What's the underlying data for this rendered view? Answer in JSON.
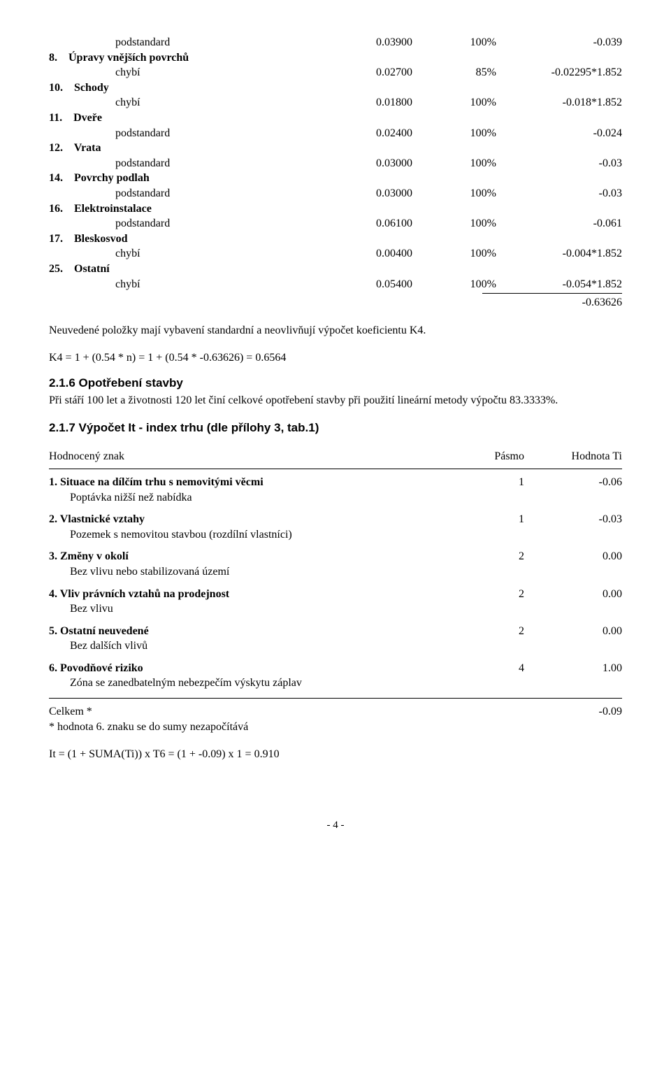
{
  "items": [
    {
      "num": "",
      "label": "podstandard",
      "v1": "0.03900",
      "v2": "100%",
      "v3": "-0.039",
      "bold": false,
      "indent": 2
    },
    {
      "num": "8.",
      "label": "Úpravy vnějších povrchů",
      "bold": true,
      "indent": 0
    },
    {
      "num": "",
      "label": "chybí",
      "v1": "0.02700",
      "v2": "85%",
      "v3": "-0.02295*1.852",
      "bold": false,
      "indent": 2
    },
    {
      "num": "10.",
      "label": "Schody",
      "bold": true,
      "indent": 0
    },
    {
      "num": "",
      "label": "chybí",
      "v1": "0.01800",
      "v2": "100%",
      "v3": "-0.018*1.852",
      "bold": false,
      "indent": 2
    },
    {
      "num": "11.",
      "label": "Dveře",
      "bold": true,
      "indent": 0
    },
    {
      "num": "",
      "label": "podstandard",
      "v1": "0.02400",
      "v2": "100%",
      "v3": "-0.024",
      "bold": false,
      "indent": 2
    },
    {
      "num": "12.",
      "label": "Vrata",
      "bold": true,
      "indent": 0
    },
    {
      "num": "",
      "label": "podstandard",
      "v1": "0.03000",
      "v2": "100%",
      "v3": "-0.03",
      "bold": false,
      "indent": 2
    },
    {
      "num": "14.",
      "label": "Povrchy podlah",
      "bold": true,
      "indent": 0
    },
    {
      "num": "",
      "label": "podstandard",
      "v1": "0.03000",
      "v2": "100%",
      "v3": "-0.03",
      "bold": false,
      "indent": 2
    },
    {
      "num": "16.",
      "label": "Elektroinstalace",
      "bold": true,
      "indent": 0
    },
    {
      "num": "",
      "label": "podstandard",
      "v1": "0.06100",
      "v2": "100%",
      "v3": "-0.061",
      "bold": false,
      "indent": 2
    },
    {
      "num": "17.",
      "label": "Bleskosvod",
      "bold": true,
      "indent": 0
    },
    {
      "num": "",
      "label": "chybí",
      "v1": "0.00400",
      "v2": "100%",
      "v3": "-0.004*1.852",
      "bold": false,
      "indent": 2
    },
    {
      "num": "25.",
      "label": "Ostatní",
      "bold": true,
      "indent": 0
    },
    {
      "num": "",
      "label": "chybí",
      "v1": "0.05400",
      "v2": "100%",
      "v3": "-0.054*1.852",
      "bold": false,
      "indent": 2
    }
  ],
  "sum_value": "-0.63626",
  "para1": "Neuvedené položky mají vybavení standardní a neovlivňují výpočet koeficientu K4.",
  "para2": "K4 = 1 + (0.54 * n) = 1 + (0.54 * -0.63626) = 0.6564",
  "section216": {
    "title": "2.1.6 Opotřebení stavby",
    "text": "Při stáří 100 let a životnosti 120 let činí celkové opotřebení stavby při použití lineární metody výpočtu 83.3333%."
  },
  "section217": {
    "title": "2.1.7 Výpočet It - index trhu (dle přílohy 3, tab.1)",
    "head": {
      "c1": "Hodnocený znak",
      "c2": "Pásmo",
      "c3": "Hodnota Ti"
    },
    "rows": [
      {
        "label": "1. Situace na dílčím trhu s nemovitými věcmi",
        "pasmo": "1",
        "val": "-0.06",
        "sub": "Poptávka nižší než nabídka"
      },
      {
        "label": "2. Vlastnické vztahy",
        "pasmo": "1",
        "val": "-0.03",
        "sub": "Pozemek s nemovitou stavbou (rozdílní vlastníci)"
      },
      {
        "label": "3. Změny v okolí",
        "pasmo": "2",
        "val": "0.00",
        "sub": "Bez vlivu nebo stabilizovaná území"
      },
      {
        "label": "4. Vliv právních vztahů na prodejnost",
        "pasmo": "2",
        "val": "0.00",
        "sub": "Bez vlivu"
      },
      {
        "label": "5. Ostatní neuvedené",
        "pasmo": "2",
        "val": "0.00",
        "sub": "Bez dalších vlivů"
      },
      {
        "label": "6. Povodňové riziko",
        "pasmo": "4",
        "val": "1.00",
        "sub": "Zóna se zanedbatelným nebezpečím výskytu záplav"
      }
    ],
    "total_label": "Celkem *",
    "total_val": "-0.09",
    "note": "* hodnota 6. znaku se do sumy nezapočítává"
  },
  "formula": "It = (1 + SUMA(Ti)) x T6 = (1 + -0.09) x 1 = 0.910",
  "page": "- 4 -"
}
